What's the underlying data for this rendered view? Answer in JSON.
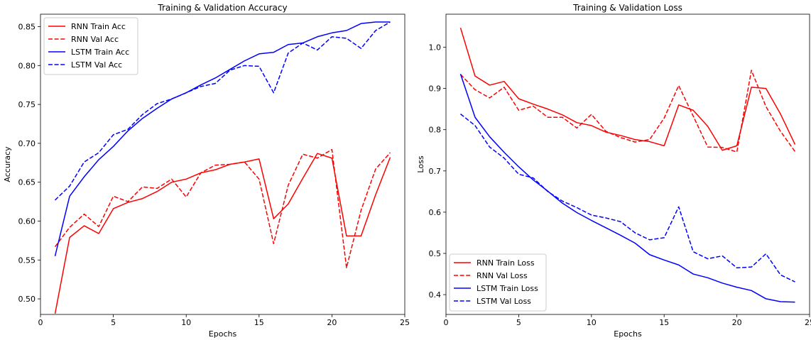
{
  "chart_data": [
    {
      "type": "line",
      "title": "Training & Validation Accuracy",
      "xlabel": "Epochs",
      "ylabel": "Accuracy",
      "xlim": [
        0,
        25
      ],
      "ylim": [
        0.48,
        0.866
      ],
      "xticks": [
        0,
        5,
        10,
        15,
        20,
        25
      ],
      "yticks": [
        0.5,
        0.55,
        0.6,
        0.65,
        0.7,
        0.75,
        0.8,
        0.85
      ],
      "ytick_labels": [
        "0.50",
        "0.55",
        "0.60",
        "0.65",
        "0.70",
        "0.75",
        "0.80",
        "0.85"
      ],
      "legend_position": "upper-left",
      "x": [
        1,
        2,
        3,
        4,
        5,
        6,
        7,
        8,
        9,
        10,
        11,
        12,
        13,
        14,
        15,
        16,
        17,
        18,
        19,
        20,
        21,
        22,
        23,
        24
      ],
      "series": [
        {
          "name": "RNN Train Acc",
          "color": "#ff0000",
          "dash": "solid",
          "values": [
            0.481,
            0.579,
            0.594,
            0.584,
            0.616,
            0.624,
            0.629,
            0.638,
            0.65,
            0.654,
            0.662,
            0.666,
            0.673,
            0.676,
            0.68,
            0.603,
            0.622,
            0.655,
            0.687,
            0.681,
            0.581,
            0.581,
            0.634,
            0.682
          ]
        },
        {
          "name": "RNN Val Acc",
          "color": "#ff0000",
          "dash": "dashed",
          "values": [
            0.567,
            0.592,
            0.609,
            0.593,
            0.632,
            0.625,
            0.644,
            0.642,
            0.654,
            0.631,
            0.662,
            0.672,
            0.673,
            0.676,
            0.654,
            0.571,
            0.646,
            0.686,
            0.681,
            0.692,
            0.54,
            0.614,
            0.667,
            0.688
          ]
        },
        {
          "name": "LSTM Train Acc",
          "color": "#0000ff",
          "dash": "solid",
          "values": [
            0.555,
            0.632,
            0.657,
            0.679,
            0.696,
            0.716,
            0.732,
            0.745,
            0.757,
            0.765,
            0.775,
            0.784,
            0.795,
            0.806,
            0.815,
            0.817,
            0.827,
            0.829,
            0.837,
            0.842,
            0.845,
            0.854,
            0.856,
            0.856
          ]
        },
        {
          "name": "LSTM Val Acc",
          "color": "#0000ff",
          "dash": "dashed",
          "values": [
            0.627,
            0.645,
            0.676,
            0.688,
            0.711,
            0.718,
            0.737,
            0.751,
            0.757,
            0.765,
            0.773,
            0.777,
            0.794,
            0.8,
            0.799,
            0.765,
            0.816,
            0.829,
            0.82,
            0.837,
            0.835,
            0.822,
            0.845,
            0.856
          ]
        }
      ]
    },
    {
      "type": "line",
      "title": "Training & Validation Loss",
      "xlabel": "Epochs",
      "ylabel": "Loss",
      "xlim": [
        0,
        25
      ],
      "ylim": [
        0.352,
        1.08
      ],
      "xticks": [
        0,
        5,
        10,
        15,
        20,
        25
      ],
      "yticks": [
        0.4,
        0.5,
        0.6,
        0.7,
        0.8,
        0.9,
        1.0
      ],
      "ytick_labels": [
        "0.4",
        "0.5",
        "0.6",
        "0.7",
        "0.8",
        "0.9",
        "1.0"
      ],
      "legend_position": "lower-left",
      "x": [
        1,
        2,
        3,
        4,
        5,
        6,
        7,
        8,
        9,
        10,
        11,
        12,
        13,
        14,
        15,
        16,
        17,
        18,
        19,
        20,
        21,
        22,
        23,
        24
      ],
      "series": [
        {
          "name": "RNN Train Loss",
          "color": "#ff0000",
          "dash": "solid",
          "values": [
            1.047,
            0.93,
            0.908,
            0.917,
            0.875,
            0.862,
            0.85,
            0.836,
            0.817,
            0.81,
            0.794,
            0.786,
            0.776,
            0.771,
            0.761,
            0.86,
            0.847,
            0.808,
            0.75,
            0.761,
            0.903,
            0.9,
            0.838,
            0.764
          ]
        },
        {
          "name": "RNN Val Loss",
          "color": "#ff0000",
          "dash": "dashed",
          "values": [
            0.934,
            0.897,
            0.877,
            0.903,
            0.847,
            0.857,
            0.83,
            0.83,
            0.804,
            0.837,
            0.796,
            0.781,
            0.77,
            0.776,
            0.828,
            0.907,
            0.833,
            0.758,
            0.757,
            0.746,
            0.944,
            0.856,
            0.796,
            0.747
          ]
        },
        {
          "name": "LSTM Train Loss",
          "color": "#0000ff",
          "dash": "solid",
          "values": [
            0.935,
            0.83,
            0.783,
            0.745,
            0.71,
            0.678,
            0.651,
            0.622,
            0.599,
            0.58,
            0.562,
            0.544,
            0.525,
            0.497,
            0.484,
            0.472,
            0.45,
            0.441,
            0.428,
            0.418,
            0.41,
            0.39,
            0.383,
            0.382
          ]
        },
        {
          "name": "LSTM Val Loss",
          "color": "#0000ff",
          "dash": "dashed",
          "values": [
            0.838,
            0.81,
            0.758,
            0.731,
            0.692,
            0.683,
            0.65,
            0.627,
            0.611,
            0.593,
            0.586,
            0.577,
            0.55,
            0.533,
            0.538,
            0.613,
            0.504,
            0.487,
            0.494,
            0.465,
            0.467,
            0.499,
            0.448,
            0.431
          ]
        }
      ]
    }
  ]
}
